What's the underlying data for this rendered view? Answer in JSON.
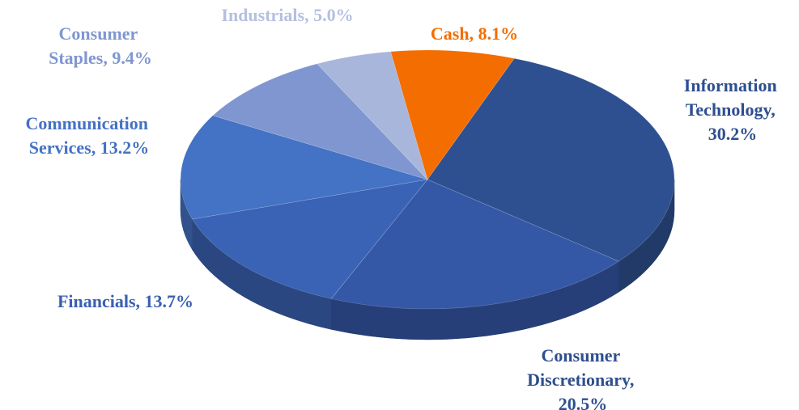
{
  "chart_data": {
    "type": "pie",
    "categories": [
      "Information Technology",
      "Consumer Discretionary",
      "Financials",
      "Communication Services",
      "Consumer Staples",
      "Industrials",
      "Cash"
    ],
    "values": [
      30.2,
      20.5,
      13.7,
      13.2,
      9.4,
      5.0,
      8.1
    ],
    "value_labels": [
      "Information Technology, 30.2%",
      "Consumer Discretionary, 20.5%",
      "Financials, 13.7%",
      "Communication Services, 13.2%",
      "Consumer Staples, 9.4%",
      "Industrials, 5.0%",
      "Cash, 8.1%"
    ],
    "colors": [
      "#2e5090",
      "#3558a6",
      "#3a62b5",
      "#4472c4",
      "#7f96d0",
      "#a8b6dc",
      "#f36d00"
    ]
  }
}
